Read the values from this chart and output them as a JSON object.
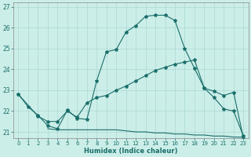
{
  "xlabel": "Humidex (Indice chaleur)",
  "bg_color": "#cceee8",
  "line_color": "#1a6e6a",
  "grid_color": "#aad8d4",
  "spine_color": "#888888",
  "xlim": [
    -0.5,
    23.5
  ],
  "ylim": [
    20.7,
    27.2
  ],
  "yticks": [
    21,
    22,
    23,
    24,
    25,
    26,
    27
  ],
  "xticks": [
    0,
    1,
    2,
    3,
    4,
    5,
    6,
    7,
    8,
    9,
    10,
    11,
    12,
    13,
    14,
    15,
    16,
    17,
    18,
    19,
    20,
    21,
    22,
    23
  ],
  "curve1_x": [
    0,
    1,
    2,
    3,
    4,
    5,
    6,
    7,
    8,
    9,
    10,
    11,
    12,
    13,
    14,
    15,
    16,
    17,
    18,
    19,
    20,
    21,
    22,
    23
  ],
  "curve1_y": [
    22.8,
    22.2,
    21.8,
    21.3,
    21.15,
    22.05,
    21.65,
    21.6,
    23.45,
    24.85,
    24.95,
    25.8,
    26.1,
    26.55,
    26.6,
    26.6,
    26.35,
    25.0,
    24.05,
    23.1,
    22.65,
    22.1,
    22.0,
    20.8
  ],
  "curve2_x": [
    0,
    2,
    3,
    4,
    5,
    6,
    7,
    8,
    9,
    10,
    11,
    12,
    13,
    14,
    15,
    16,
    17,
    18,
    19,
    20,
    21,
    22,
    23
  ],
  "curve2_y": [
    22.8,
    21.75,
    21.5,
    21.5,
    22.0,
    21.7,
    22.4,
    22.65,
    22.75,
    23.0,
    23.2,
    23.45,
    23.7,
    23.95,
    24.1,
    24.25,
    24.35,
    24.45,
    23.1,
    22.95,
    22.75,
    22.9,
    20.7
  ],
  "curve3_x": [
    3,
    4,
    5,
    6,
    7,
    8,
    9,
    10,
    11,
    12,
    13,
    14,
    15,
    16,
    17,
    18,
    19,
    20,
    21,
    22,
    23
  ],
  "curve3_y": [
    21.15,
    21.1,
    21.1,
    21.1,
    21.1,
    21.1,
    21.1,
    21.1,
    21.05,
    21.0,
    21.0,
    20.95,
    20.95,
    20.9,
    20.9,
    20.85,
    20.85,
    20.8,
    20.8,
    20.75,
    20.75
  ]
}
